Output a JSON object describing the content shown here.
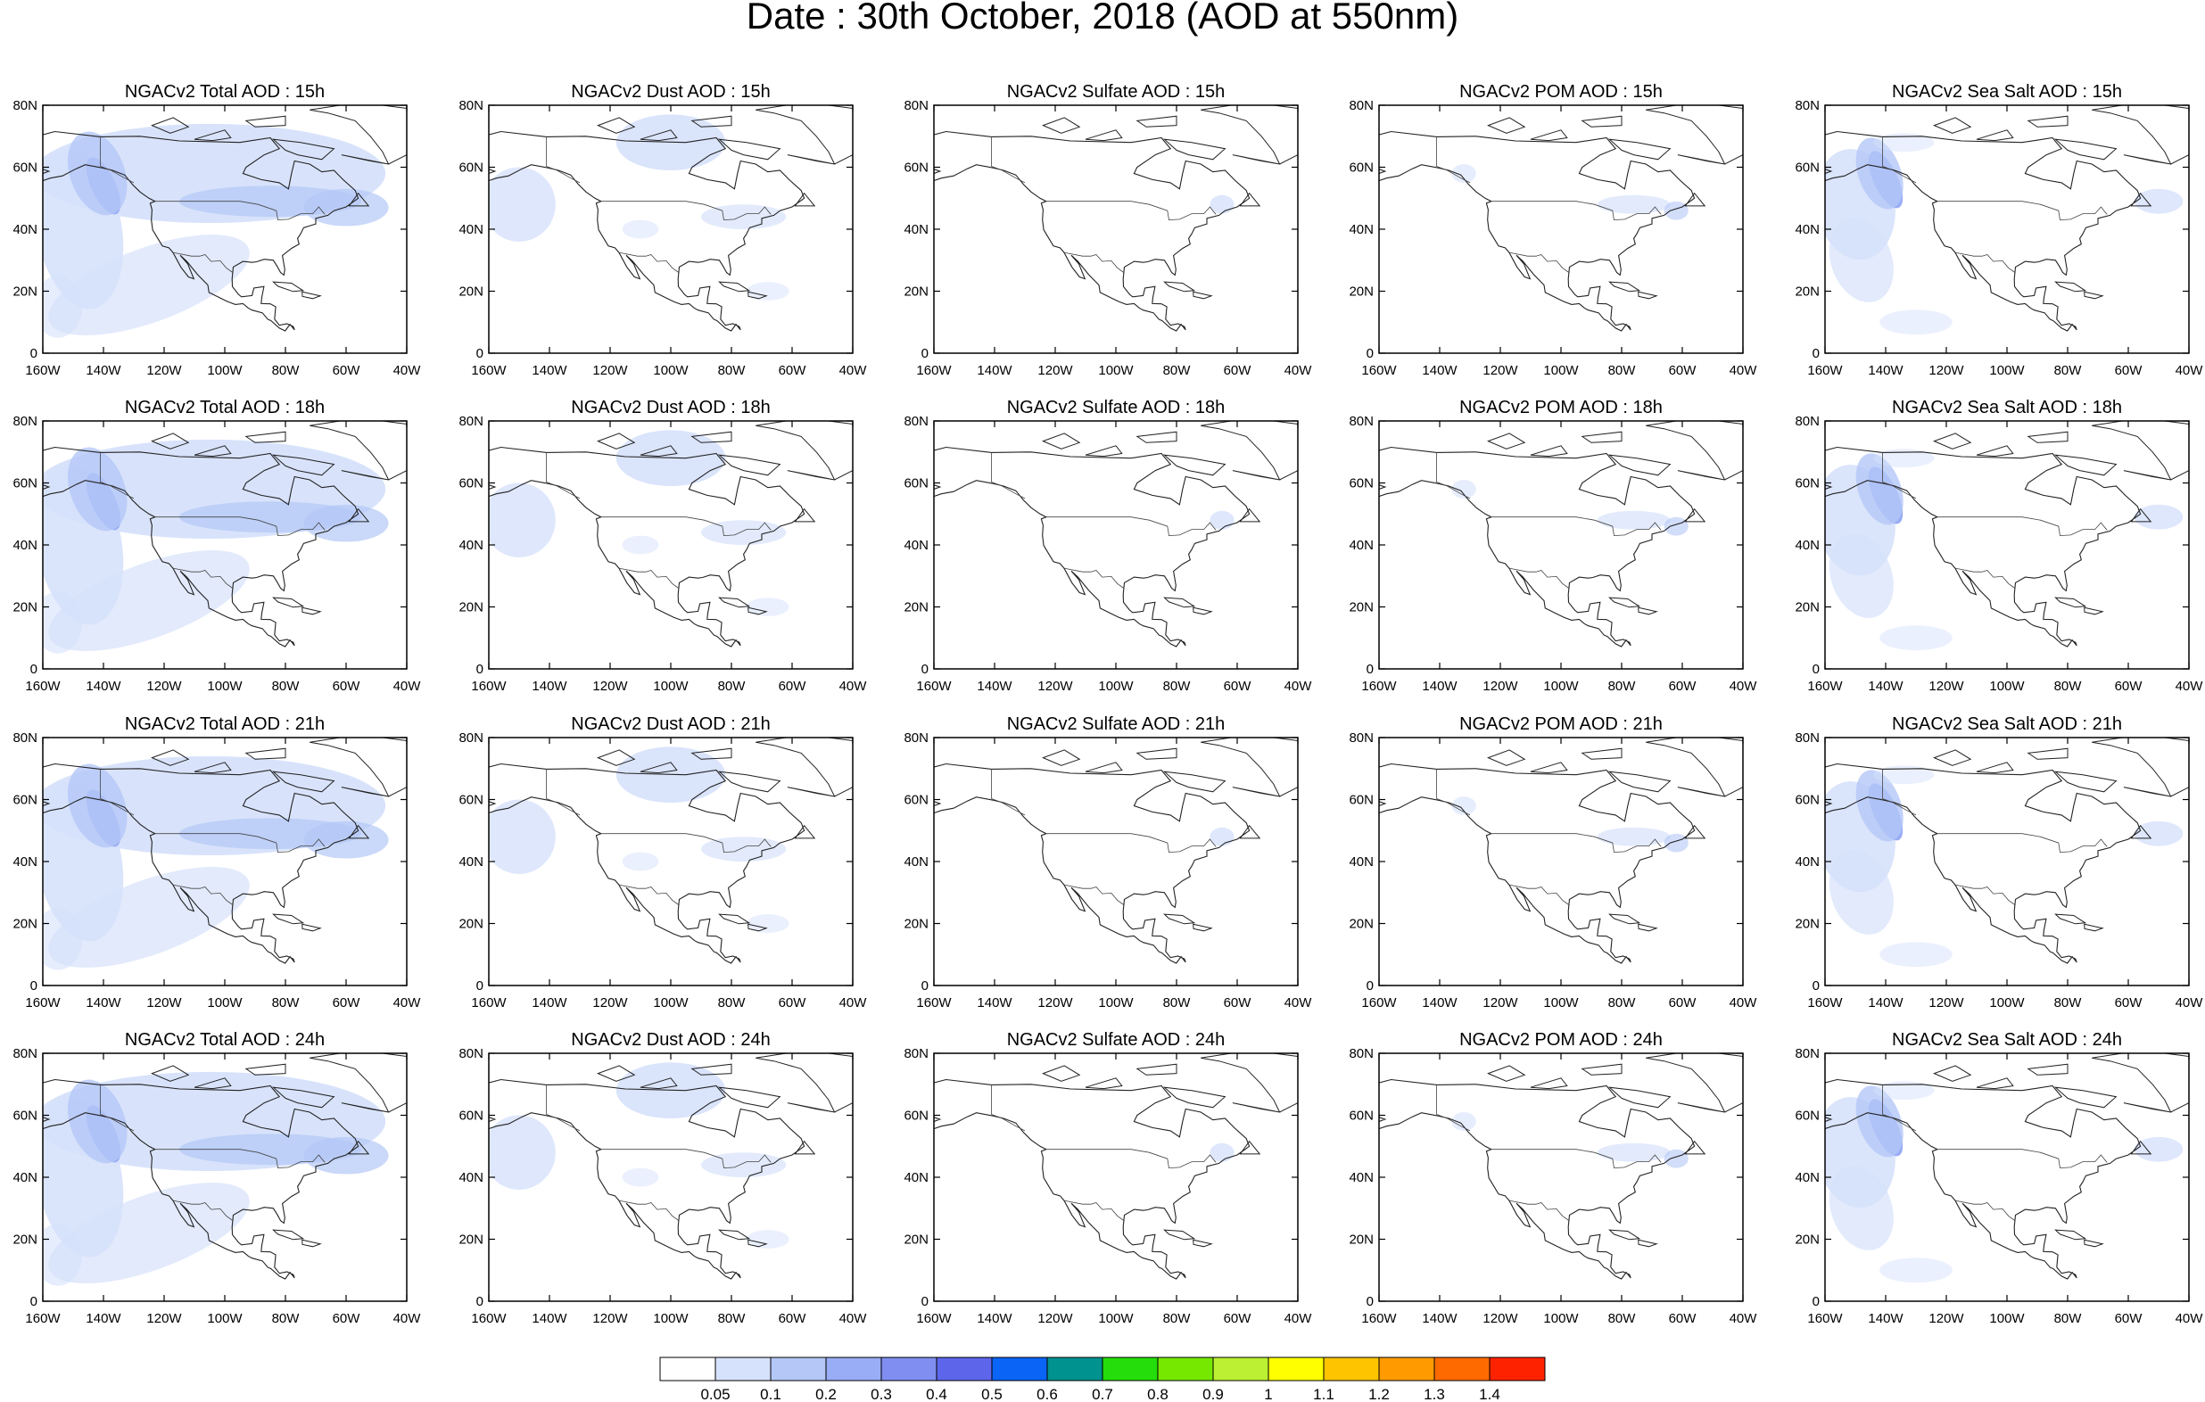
{
  "title": "Date : 30th October, 2018 (AOD at 550nm)",
  "lat_ticks": [
    "0",
    "20N",
    "40N",
    "60N",
    "80N"
  ],
  "lon_ticks": [
    "160W",
    "140W",
    "120W",
    "100W",
    "80W",
    "60W",
    "40W"
  ],
  "rows": [
    {
      "hour": "15h",
      "titles": [
        "NGACv2 Total AOD : 15h",
        "NGACv2 Dust AOD : 15h",
        "NGACv2 Sulfate AOD : 15h",
        "NGACv2 POM AOD : 15h",
        "NGACv2 Sea Salt AOD : 15h"
      ]
    },
    {
      "hour": "18h",
      "titles": [
        "NGACv2 Total AOD : 18h",
        "NGACv2 Dust AOD : 18h",
        "NGACv2 Sulfate AOD : 18h",
        "NGACv2 POM AOD : 18h",
        "NGACv2 Sea Salt AOD : 18h"
      ]
    },
    {
      "hour": "21h",
      "titles": [
        "NGACv2 Total AOD : 21h",
        "NGACv2 Dust AOD : 21h",
        "NGACv2 Sulfate AOD : 21h",
        "NGACv2 POM AOD : 21h",
        "NGACv2 Sea Salt AOD : 21h"
      ]
    },
    {
      "hour": "24h",
      "titles": [
        "NGACv2 Total AOD : 24h",
        "NGACv2 Dust AOD : 24h",
        "NGACv2 Sulfate AOD : 24h",
        "NGACv2 POM AOD : 24h",
        "NGACv2 Sea Salt  AOD : 24h"
      ]
    }
  ],
  "colorbar": {
    "colors": [
      "#ffffff",
      "#d6e1fb",
      "#b4c7f7",
      "#98adf5",
      "#7f8ef0",
      "#5d66ea",
      "#0a64f5",
      "#00928f",
      "#24dd0a",
      "#76e800",
      "#bcf032",
      "#ffff00",
      "#ffc400",
      "#ff9b00",
      "#ff6a00",
      "#ff2200"
    ],
    "labels": [
      "0.05",
      "0.1",
      "0.2",
      "0.3",
      "0.4",
      "0.5",
      "0.6",
      "0.7",
      "0.8",
      "0.9",
      "1",
      "1.1",
      "1.2",
      "1.3",
      "1.4"
    ]
  }
}
